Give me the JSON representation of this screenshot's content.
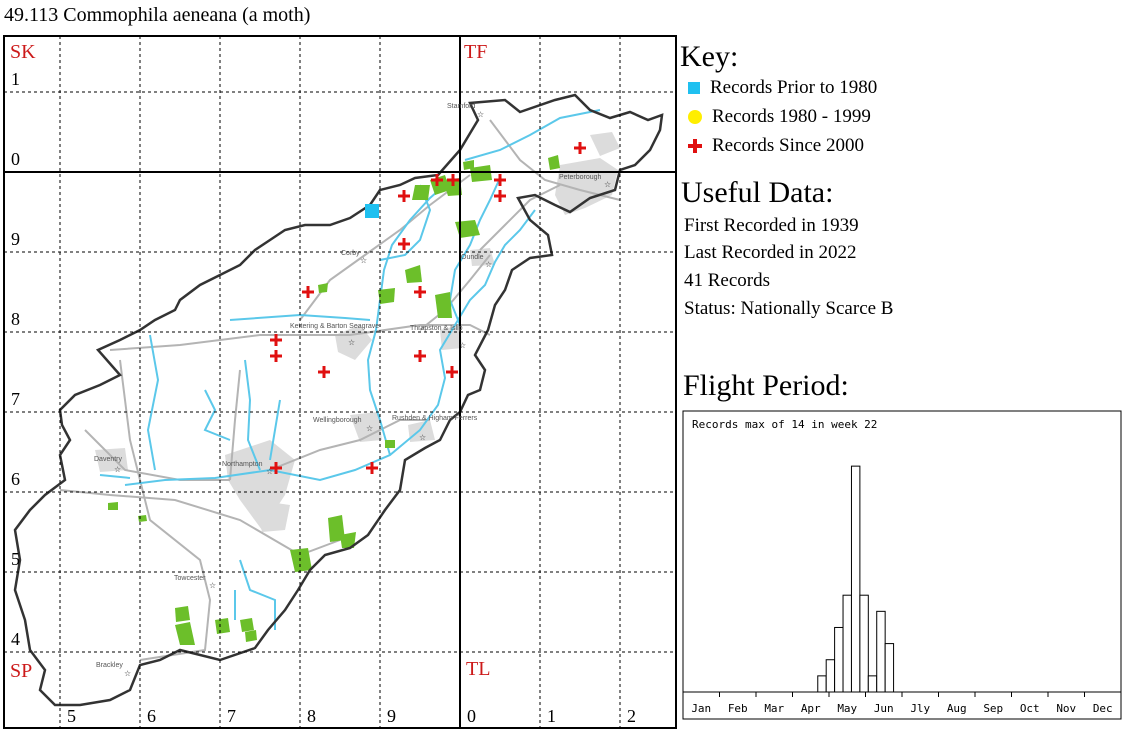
{
  "title": "49.113 Commophila aeneana (a moth)",
  "map": {
    "grid_letters": [
      "SK",
      "TF",
      "SP",
      "TL"
    ],
    "x_labels": [
      "5",
      "6",
      "7",
      "8",
      "9",
      "0",
      "1",
      "2"
    ],
    "y_labels": [
      "1",
      "0",
      "9",
      "8",
      "7",
      "6",
      "5",
      "4"
    ],
    "towns": [
      "Stamford",
      "Peterborough",
      "Corby",
      "Oundle",
      "Kettering & Barton Seagrave",
      "Thrapston & Islip",
      "Wellingborough",
      "Rushden & Higham Ferrers",
      "Daventry",
      "Northampton",
      "Towcester",
      "Brackley"
    ],
    "colors": {
      "square": "#1fc0f0",
      "dot": "#ffee00",
      "plus": "#e01010",
      "river": "#5bc8ea",
      "road": "#b4b4b4",
      "woods": "#6cbf2a",
      "urban": "#dcdcdc"
    }
  },
  "key": {
    "heading": "Key:",
    "items": [
      {
        "symbol": "square-icon",
        "label": "Records Prior to 1980"
      },
      {
        "symbol": "dot-icon",
        "label": "Records 1980 - 1999"
      },
      {
        "symbol": "plus-icon",
        "label": "Records Since 2000"
      }
    ]
  },
  "useful": {
    "heading": "Useful Data:",
    "first": "First Recorded in 1939",
    "last": "Last Recorded in 2022",
    "records": "41 Records",
    "status": "Status: Nationally Scarce B"
  },
  "flight": {
    "heading": "Flight Period:"
  },
  "chart_data": {
    "type": "bar",
    "title": "Records max of 14 in week 22",
    "months": [
      "Jan",
      "Feb",
      "Mar",
      "Apr",
      "May",
      "Jun",
      "Jly",
      "Aug",
      "Sep",
      "Oct",
      "Nov",
      "Dec"
    ],
    "weeks": [
      17,
      18,
      19,
      20,
      21,
      22,
      23,
      24,
      25,
      26
    ],
    "values": [
      1,
      2,
      4,
      6,
      14,
      6,
      1,
      5,
      3,
      0
    ],
    "ylim": [
      0,
      15
    ]
  }
}
